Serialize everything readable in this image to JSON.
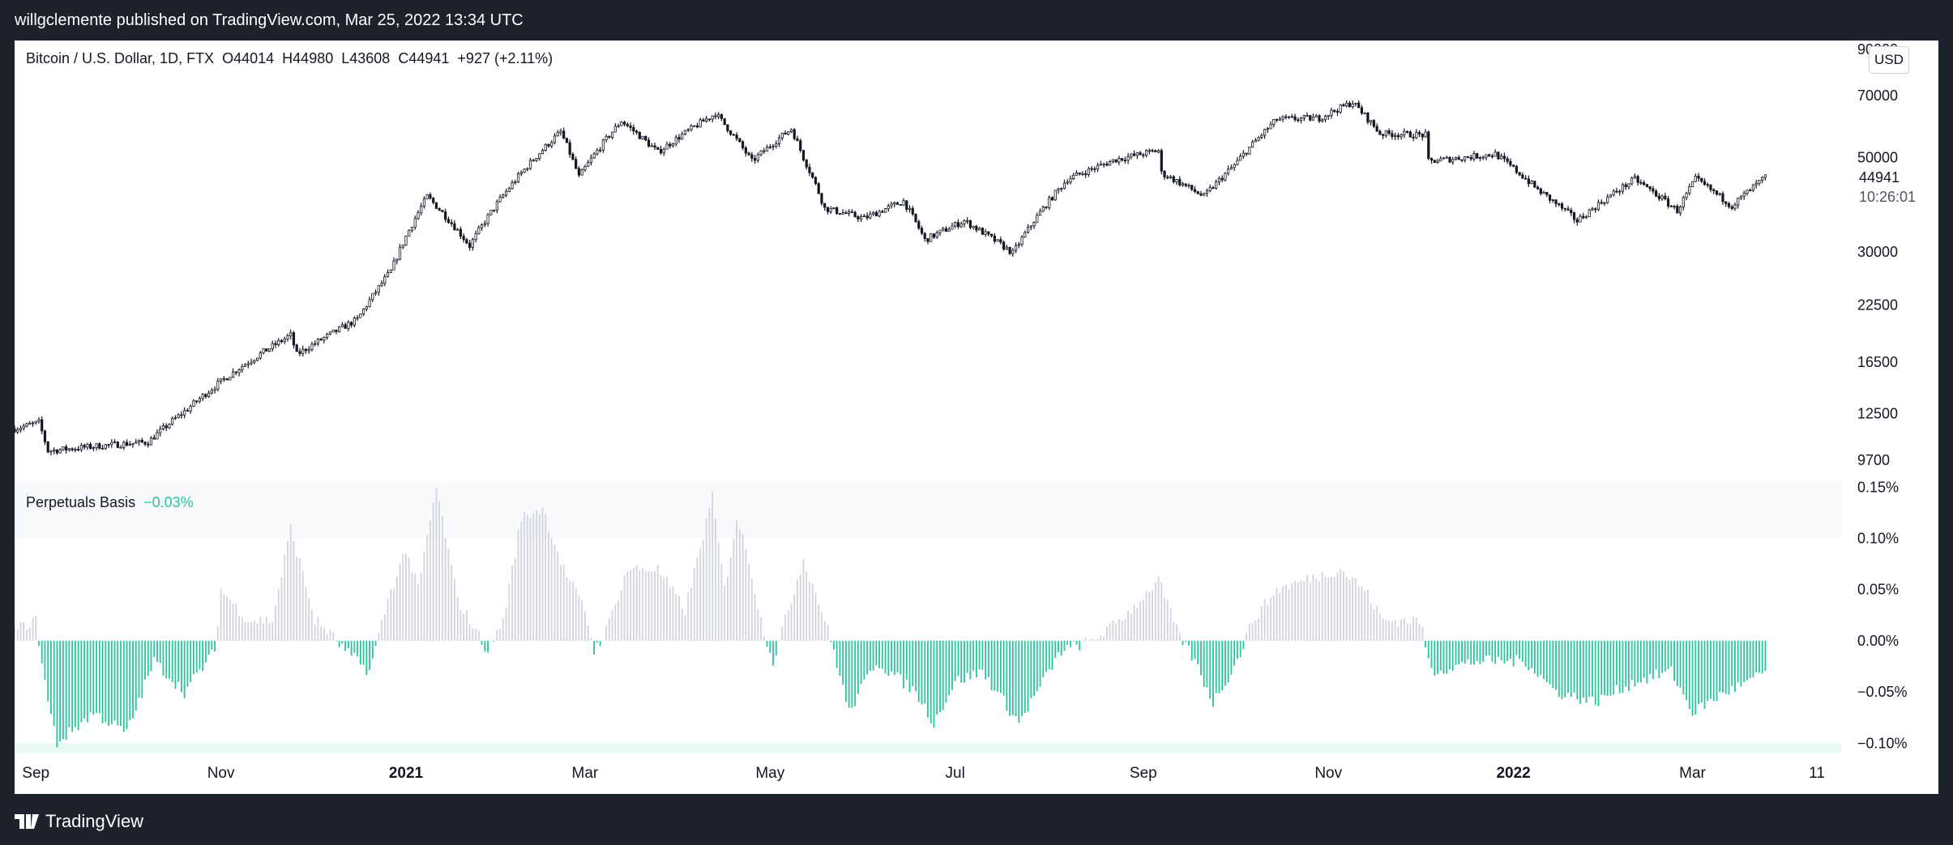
{
  "header": {
    "published": "willgclemente published on TradingView.com, Mar 25, 2022 13:34 UTC"
  },
  "footer": {
    "brand": "TradingView",
    "logo_icon": "tradingview-logo-icon"
  },
  "badge": {
    "currency": "USD"
  },
  "colors": {
    "candle": "#131722",
    "basis_positive": "#d1d4dc",
    "basis_negative": "#26c59a",
    "text": "#131722"
  },
  "chart_data": [
    {
      "type": "candlestick",
      "title": "Bitcoin / U.S. Dollar, 1D, FTX",
      "ohlc_label": {
        "o": "O44014",
        "h": "H44980",
        "l": "L43608",
        "c": "C44941",
        "change": "+927 (+2.11%)"
      },
      "y_scale": "log",
      "y_ticks": [
        90000,
        70000,
        50000,
        30000,
        22500,
        16500,
        12500,
        9700
      ],
      "y_tick_labels": [
        "90000",
        "70000",
        "50000",
        "30000",
        "22500",
        "16500",
        "12500",
        "9700"
      ],
      "last_price_label": "44941",
      "countdown_label": "10:26:01",
      "x_tick_labels": [
        "Sep",
        "Nov",
        "2021",
        "Mar",
        "May",
        "Jul",
        "Sep",
        "Nov",
        "2022",
        "Mar",
        "11"
      ],
      "x_tick_dates": [
        "2020-09-01",
        "2020-11-01",
        "2021-01-01",
        "2021-03-01",
        "2021-05-01",
        "2021-07-01",
        "2021-09-01",
        "2021-11-01",
        "2022-01-01",
        "2022-03-01",
        "2022-04-11"
      ],
      "x_range": [
        "2020-08-25",
        "2022-04-19"
      ],
      "close_anchors": [
        [
          "2020-08-25",
          11500
        ],
        [
          "2020-09-02",
          11900
        ],
        [
          "2020-09-05",
          10200
        ],
        [
          "2020-09-23",
          10500
        ],
        [
          "2020-10-08",
          10700
        ],
        [
          "2020-10-21",
          12800
        ],
        [
          "2020-11-05",
          15600
        ],
        [
          "2020-11-24",
          19100
        ],
        [
          "2020-11-26",
          17200
        ],
        [
          "2020-12-16",
          20800
        ],
        [
          "2020-12-27",
          27000
        ],
        [
          "2021-01-08",
          40500
        ],
        [
          "2021-01-22",
          31000
        ],
        [
          "2021-02-08",
          46000
        ],
        [
          "2021-02-21",
          57500
        ],
        [
          "2021-02-27",
          45000
        ],
        [
          "2021-03-13",
          61000
        ],
        [
          "2021-03-25",
          51500
        ],
        [
          "2021-04-13",
          63500
        ],
        [
          "2021-04-25",
          49000
        ],
        [
          "2021-05-08",
          58500
        ],
        [
          "2021-05-12",
          50000
        ],
        [
          "2021-05-19",
          38000
        ],
        [
          "2021-06-01",
          36000
        ],
        [
          "2021-06-14",
          39500
        ],
        [
          "2021-06-21",
          32000
        ],
        [
          "2021-07-04",
          35500
        ],
        [
          "2021-07-20",
          29800
        ],
        [
          "2021-08-07",
          44500
        ],
        [
          "2021-08-23",
          49500
        ],
        [
          "2021-09-06",
          52000
        ],
        [
          "2021-09-07",
          46000
        ],
        [
          "2021-09-21",
          40500
        ],
        [
          "2021-10-01",
          48000
        ],
        [
          "2021-10-15",
          61500
        ],
        [
          "2021-10-29",
          62000
        ],
        [
          "2021-11-09",
          67500
        ],
        [
          "2021-11-18",
          57000
        ],
        [
          "2021-12-03",
          56500
        ],
        [
          "2021-12-04",
          49000
        ],
        [
          "2021-12-26",
          51000
        ],
        [
          "2022-01-09",
          42000
        ],
        [
          "2022-01-22",
          35500
        ],
        [
          "2022-02-10",
          44500
        ],
        [
          "2022-02-24",
          37500
        ],
        [
          "2022-03-02",
          44500
        ],
        [
          "2022-03-14",
          38500
        ],
        [
          "2022-03-25",
          44941
        ]
      ]
    },
    {
      "type": "bar",
      "title": "Perpetuals Basis",
      "value_label": "−0.03%",
      "y_ticks": [
        0.15,
        0.1,
        0.05,
        0.0,
        -0.05,
        -0.1
      ],
      "y_tick_labels": [
        "0.15%",
        "0.10%",
        "0.05%",
        "0.00%",
        "−0.05%",
        "−0.10%"
      ],
      "ylim": [
        -0.11,
        0.155
      ],
      "unit": "%",
      "anchors": [
        [
          "2020-08-25",
          0.01
        ],
        [
          "2020-09-01",
          0.02
        ],
        [
          "2020-09-05",
          -0.06
        ],
        [
          "2020-09-08",
          -0.1
        ],
        [
          "2020-09-20",
          -0.07
        ],
        [
          "2020-10-01",
          -0.09
        ],
        [
          "2020-10-10",
          -0.02
        ],
        [
          "2020-10-20",
          -0.05
        ],
        [
          "2020-10-30",
          -0.01
        ],
        [
          "2020-11-01",
          0.05
        ],
        [
          "2020-11-10",
          0.02
        ],
        [
          "2020-11-18",
          0.02
        ],
        [
          "2020-11-24",
          0.11
        ],
        [
          "2020-12-02",
          0.02
        ],
        [
          "2020-12-06",
          0.01
        ],
        [
          "2020-12-12",
          -0.01
        ],
        [
          "2020-12-20",
          -0.03
        ],
        [
          "2020-12-26",
          0.04
        ],
        [
          "2021-01-01",
          0.09
        ],
        [
          "2021-01-05",
          0.05
        ],
        [
          "2021-01-11",
          0.15
        ],
        [
          "2021-01-18",
          0.04
        ],
        [
          "2021-01-24",
          0.01
        ],
        [
          "2021-01-28",
          -0.01
        ],
        [
          "2021-02-02",
          0.02
        ],
        [
          "2021-02-08",
          0.12
        ],
        [
          "2021-02-15",
          0.13
        ],
        [
          "2021-02-22",
          0.07
        ],
        [
          "2021-03-01",
          0.03
        ],
        [
          "2021-03-04",
          -0.01
        ],
        [
          "2021-03-08",
          0.01
        ],
        [
          "2021-03-15",
          0.07
        ],
        [
          "2021-03-25",
          0.07
        ],
        [
          "2021-04-03",
          0.03
        ],
        [
          "2021-04-12",
          0.14
        ],
        [
          "2021-04-16",
          0.05
        ],
        [
          "2021-04-20",
          0.12
        ],
        [
          "2021-04-24",
          0.08
        ],
        [
          "2021-04-28",
          0.02
        ],
        [
          "2021-05-02",
          -0.02
        ],
        [
          "2021-05-06",
          0.02
        ],
        [
          "2021-05-12",
          0.08
        ],
        [
          "2021-05-18",
          0.03
        ],
        [
          "2021-05-22",
          -0.01
        ],
        [
          "2021-05-27",
          -0.07
        ],
        [
          "2021-06-05",
          -0.02
        ],
        [
          "2021-06-18",
          -0.05
        ],
        [
          "2021-06-24",
          -0.08
        ],
        [
          "2021-07-01",
          -0.04
        ],
        [
          "2021-07-10",
          -0.03
        ],
        [
          "2021-07-22",
          -0.08
        ],
        [
          "2021-07-30",
          -0.04
        ],
        [
          "2021-08-05",
          -0.01
        ],
        [
          "2021-08-15",
          0.0
        ],
        [
          "2021-08-20",
          0.01
        ],
        [
          "2021-08-28",
          0.03
        ],
        [
          "2021-09-06",
          0.06
        ],
        [
          "2021-09-12",
          0.01
        ],
        [
          "2021-09-18",
          -0.02
        ],
        [
          "2021-09-24",
          -0.06
        ],
        [
          "2021-10-02",
          -0.02
        ],
        [
          "2021-10-07",
          0.02
        ],
        [
          "2021-10-15",
          0.05
        ],
        [
          "2021-10-25",
          0.06
        ],
        [
          "2021-11-05",
          0.07
        ],
        [
          "2021-11-13",
          0.05
        ],
        [
          "2021-11-19",
          0.02
        ],
        [
          "2021-12-01",
          0.02
        ],
        [
          "2021-12-05",
          -0.03
        ],
        [
          "2021-12-20",
          -0.02
        ],
        [
          "2022-01-05",
          -0.02
        ],
        [
          "2022-01-15",
          -0.05
        ],
        [
          "2022-01-28",
          -0.06
        ],
        [
          "2022-02-10",
          -0.04
        ],
        [
          "2022-02-22",
          -0.03
        ],
        [
          "2022-03-01",
          -0.07
        ],
        [
          "2022-03-12",
          -0.05
        ],
        [
          "2022-03-20",
          -0.04
        ],
        [
          "2022-03-25",
          -0.03
        ]
      ]
    }
  ]
}
